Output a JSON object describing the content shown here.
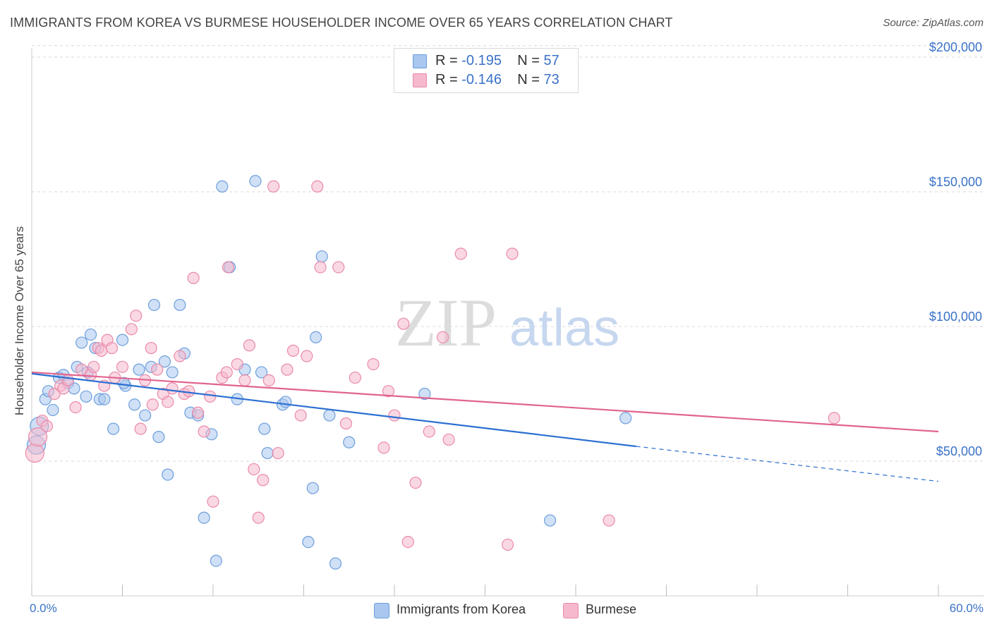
{
  "title": "IMMIGRANTS FROM KOREA VS BURMESE HOUSEHOLDER INCOME OVER 65 YEARS CORRELATION CHART",
  "source": "Source: ZipAtlas.com",
  "watermark": {
    "zip": "ZIP",
    "atlas": "atlas"
  },
  "legend_top": {
    "rows": [
      {
        "r_label": "R = ",
        "r_value": "-0.195",
        "n_label": "N = ",
        "n_value": "57"
      },
      {
        "r_label": "R = ",
        "r_value": "-0.146",
        "n_label": "N = ",
        "n_value": "73"
      }
    ]
  },
  "legend_bottom": {
    "korea": "Immigrants from Korea",
    "burmese": "Burmese"
  },
  "x_axis": {
    "min_label": "0.0%",
    "max_label": "60.0%"
  },
  "chart_data": {
    "type": "scatter",
    "title": "IMMIGRANTS FROM KOREA VS BURMESE HOUSEHOLDER INCOME OVER 65 YEARS CORRELATION CHART",
    "xlabel": "",
    "ylabel": "Householder Income Over 65 years",
    "xlim": [
      0,
      60
    ],
    "ylim": [
      0,
      210000
    ],
    "y_ticks": [
      50000,
      100000,
      150000,
      200000
    ],
    "y_tick_labels": [
      "$50,000",
      "$100,000",
      "$150,000",
      "$200,000"
    ],
    "x_unit": "%",
    "legend_position": "bottom-center",
    "colors": {
      "korea_fill": "#a9c7ef",
      "korea_stroke": "#6d9fdc",
      "korea_line": "#2b6fd1",
      "burmese_fill": "#f6b8cc",
      "burmese_stroke": "#e98aaa",
      "burmese_line": "#e0648f",
      "axis_text": "#3a72c8",
      "grid": "#d8d8d8"
    },
    "series": [
      {
        "name": "Immigrants from Korea",
        "r": -0.195,
        "n": 57,
        "trend": {
          "x0": 0,
          "y0": 82500,
          "x1": 40,
          "y1": 55500,
          "dash_to_x": 60,
          "dash_to_y": 42500
        },
        "points": [
          [
            0.5,
            63000
          ],
          [
            0.9,
            73000
          ],
          [
            1.1,
            76000
          ],
          [
            1.4,
            69000
          ],
          [
            1.8,
            81000
          ],
          [
            2.1,
            82000
          ],
          [
            2.4,
            79000
          ],
          [
            2.8,
            77000
          ],
          [
            3.0,
            85000
          ],
          [
            3.3,
            94000
          ],
          [
            3.6,
            74000
          ],
          [
            3.9,
            97000
          ],
          [
            4.2,
            92000
          ],
          [
            4.5,
            73000
          ],
          [
            4.8,
            73000
          ],
          [
            5.4,
            62000
          ],
          [
            6.0,
            95000
          ],
          [
            6.2,
            78000
          ],
          [
            6.8,
            71000
          ],
          [
            7.1,
            84000
          ],
          [
            7.5,
            67000
          ],
          [
            7.9,
            85000
          ],
          [
            8.1,
            108000
          ],
          [
            8.4,
            59000
          ],
          [
            8.8,
            87000
          ],
          [
            9.0,
            45000
          ],
          [
            9.3,
            83000
          ],
          [
            9.8,
            108000
          ],
          [
            10.1,
            90000
          ],
          [
            10.5,
            68000
          ],
          [
            11.0,
            67000
          ],
          [
            11.4,
            29000
          ],
          [
            11.9,
            60000
          ],
          [
            12.2,
            13000
          ],
          [
            12.6,
            152000
          ],
          [
            13.1,
            122000
          ],
          [
            13.6,
            73000
          ],
          [
            14.1,
            84000
          ],
          [
            14.8,
            154000
          ],
          [
            15.2,
            83000
          ],
          [
            15.4,
            62000
          ],
          [
            15.6,
            53000
          ],
          [
            16.6,
            71000
          ],
          [
            16.8,
            72000
          ],
          [
            18.3,
            20000
          ],
          [
            18.6,
            40000
          ],
          [
            18.8,
            96000
          ],
          [
            19.2,
            126000
          ],
          [
            19.7,
            67000
          ],
          [
            20.1,
            12000
          ],
          [
            21.0,
            57000
          ],
          [
            26.0,
            75000
          ],
          [
            34.3,
            28000
          ],
          [
            39.3,
            66000
          ],
          [
            0.3,
            56000
          ],
          [
            3.7,
            83000
          ],
          [
            6.1,
            79000
          ]
        ]
      },
      {
        "name": "Burmese",
        "r": -0.146,
        "n": 73,
        "trend": {
          "x0": 0,
          "y0": 83000,
          "x1": 60,
          "y1": 61000
        },
        "points": [
          [
            0.2,
            53000
          ],
          [
            0.4,
            59000
          ],
          [
            0.7,
            65000
          ],
          [
            1.0,
            63000
          ],
          [
            1.5,
            75000
          ],
          [
            1.9,
            78000
          ],
          [
            2.1,
            77000
          ],
          [
            2.4,
            80000
          ],
          [
            2.9,
            70000
          ],
          [
            3.3,
            84000
          ],
          [
            3.9,
            82000
          ],
          [
            4.1,
            85000
          ],
          [
            4.4,
            92000
          ],
          [
            4.8,
            78000
          ],
          [
            5.0,
            95000
          ],
          [
            5.3,
            92000
          ],
          [
            5.5,
            81000
          ],
          [
            6.0,
            85000
          ],
          [
            6.6,
            99000
          ],
          [
            6.9,
            104000
          ],
          [
            7.2,
            62000
          ],
          [
            7.5,
            80000
          ],
          [
            7.9,
            92000
          ],
          [
            8.3,
            84000
          ],
          [
            8.7,
            75000
          ],
          [
            9.0,
            72000
          ],
          [
            9.3,
            77000
          ],
          [
            9.8,
            89000
          ],
          [
            10.1,
            75000
          ],
          [
            10.4,
            76000
          ],
          [
            10.7,
            118000
          ],
          [
            11.0,
            68000
          ],
          [
            11.4,
            61000
          ],
          [
            11.8,
            74000
          ],
          [
            12.0,
            35000
          ],
          [
            12.6,
            81000
          ],
          [
            13.0,
            122000
          ],
          [
            13.6,
            86000
          ],
          [
            14.1,
            80000
          ],
          [
            14.4,
            93000
          ],
          [
            14.7,
            47000
          ],
          [
            15.0,
            29000
          ],
          [
            15.3,
            43000
          ],
          [
            15.7,
            80000
          ],
          [
            16.0,
            152000
          ],
          [
            16.3,
            53000
          ],
          [
            16.9,
            84000
          ],
          [
            17.3,
            91000
          ],
          [
            17.8,
            67000
          ],
          [
            18.2,
            89000
          ],
          [
            18.9,
            152000
          ],
          [
            19.1,
            122000
          ],
          [
            20.3,
            122000
          ],
          [
            20.8,
            64000
          ],
          [
            21.4,
            81000
          ],
          [
            22.6,
            86000
          ],
          [
            23.3,
            55000
          ],
          [
            23.6,
            76000
          ],
          [
            24.0,
            67000
          ],
          [
            24.6,
            101000
          ],
          [
            24.9,
            20000
          ],
          [
            25.4,
            42000
          ],
          [
            26.3,
            61000
          ],
          [
            27.2,
            96000
          ],
          [
            27.6,
            58000
          ],
          [
            28.4,
            127000
          ],
          [
            31.5,
            19000
          ],
          [
            31.8,
            127000
          ],
          [
            38.2,
            28000
          ],
          [
            53.1,
            66000
          ],
          [
            4.6,
            91000
          ],
          [
            12.9,
            83000
          ],
          [
            8.0,
            71000
          ]
        ]
      }
    ]
  }
}
